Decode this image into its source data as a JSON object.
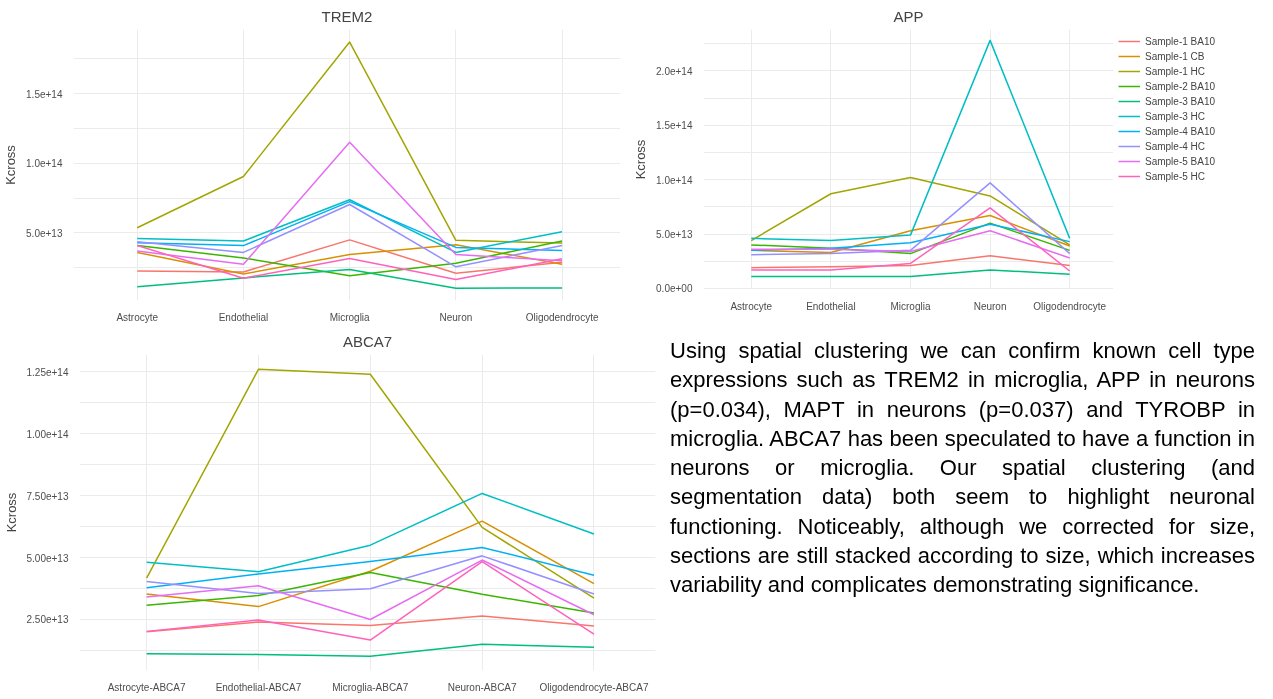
{
  "chart_data": [
    {
      "type": "line",
      "title": "TREM2",
      "ylabel": "Kcross",
      "grid": true,
      "legend": false,
      "categories": [
        "Astrocyte",
        "Endothelial",
        "Microglia",
        "Neuron",
        "Oligodendrocyte"
      ],
      "ylim": [
        1500000000000.0,
        196000000000000.0
      ],
      "yticks": [
        {
          "value": 25000000000000.0,
          "label": null
        },
        {
          "value": 50000000000000.0,
          "label": "5.0e+13"
        },
        {
          "value": 75000000000000.0,
          "label": null
        },
        {
          "value": 100000000000000.0,
          "label": "1.0e+14"
        },
        {
          "value": 125000000000000.0,
          "label": null
        },
        {
          "value": 150000000000000.0,
          "label": "1.5e+14"
        },
        {
          "value": 175000000000000.0,
          "label": null
        }
      ],
      "series": [
        {
          "color": "#f8766d",
          "values": [
            22600000000000.0,
            22000000000000.0,
            45000000000000.0,
            21000000000000.0,
            29000000000000.0
          ]
        },
        {
          "color": "#d89000",
          "values": [
            36000000000000.0,
            20500000000000.0,
            34500000000000.0,
            41500000000000.0,
            27500000000000.0
          ]
        },
        {
          "color": "#a3a500",
          "values": [
            53700000000000.0,
            90500000000000.0,
            187000000000000.0,
            44700000000000.0,
            42700000000000.0
          ]
        },
        {
          "color": "#39b600",
          "values": [
            41000000000000.0,
            32000000000000.0,
            19300000000000.0,
            28300000000000.0,
            44200000000000.0
          ]
        },
        {
          "color": "#00bf7d",
          "values": [
            11300000000000.0,
            17700000000000.0,
            23700000000000.0,
            10300000000000.0,
            10500000000000.0
          ]
        },
        {
          "color": "#00bfc4",
          "values": [
            46000000000000.0,
            44200000000000.0,
            73800000000000.0,
            36000000000000.0,
            50900000000000.0
          ]
        },
        {
          "color": "#00b0f6",
          "values": [
            43000000000000.0,
            40900000000000.0,
            72500000000000.0,
            39600000000000.0,
            37300000000000.0
          ]
        },
        {
          "color": "#9590ff",
          "values": [
            43700000000000.0,
            36000000000000.0,
            70400000000000.0,
            25700000000000.0,
            41000000000000.0
          ]
        },
        {
          "color": "#e76bf3",
          "values": [
            37000000000000.0,
            27500000000000.0,
            115000000000000.0,
            34500000000000.0,
            30000000000000.0
          ]
        },
        {
          "color": "#ff62bc",
          "values": [
            41000000000000.0,
            17500000000000.0,
            31600000000000.0,
            16500000000000.0,
            31400000000000.0
          ]
        }
      ]
    },
    {
      "type": "line",
      "title": "APP",
      "ylabel": "Kcross",
      "grid": true,
      "legend": "right",
      "categories": [
        "Astrocyte",
        "Endothelial",
        "Microglia",
        "Neuron",
        "Oligodendrocyte"
      ],
      "ylim": [
        -1000000000000.0,
        238000000000000.0
      ],
      "yticks": [
        {
          "value": 0,
          "label": "0.0e+00"
        },
        {
          "value": 25000000000000.0,
          "label": null
        },
        {
          "value": 50000000000000.0,
          "label": "5.0e+13"
        },
        {
          "value": 75000000000000.0,
          "label": null
        },
        {
          "value": 100000000000000.0,
          "label": "1.0e+14"
        },
        {
          "value": 125000000000000.0,
          "label": null
        },
        {
          "value": 150000000000000.0,
          "label": "1.5e+14"
        },
        {
          "value": 175000000000000.0,
          "label": null
        },
        {
          "value": 200000000000000.0,
          "label": "2.0e+14"
        },
        {
          "value": 225000000000000.0,
          "label": null
        }
      ],
      "series": [
        {
          "name": "Sample-1 BA10",
          "color": "#f8766d",
          "values": [
            19000000000000.0,
            20000000000000.0,
            21000000000000.0,
            30000000000000.0,
            21000000000000.0
          ]
        },
        {
          "name": "Sample-1 CB",
          "color": "#d89000",
          "values": [
            35000000000000.0,
            33000000000000.0,
            53000000000000.0,
            67000000000000.0,
            39000000000000.0
          ]
        },
        {
          "name": "Sample-1 HC",
          "color": "#a3a500",
          "values": [
            44000000000000.0,
            87000000000000.0,
            102000000000000.0,
            85000000000000.0,
            40000000000000.0
          ]
        },
        {
          "name": "Sample-2 BA10",
          "color": "#39b600",
          "values": [
            40000000000000.0,
            37000000000000.0,
            32000000000000.0,
            60000000000000.0,
            35000000000000.0
          ]
        },
        {
          "name": "Sample-3 BA10",
          "color": "#00bf7d",
          "values": [
            11000000000000.0,
            11000000000000.0,
            11000000000000.0,
            17000000000000.0,
            13000000000000.0
          ]
        },
        {
          "name": "Sample-3 HC",
          "color": "#00bfc4",
          "values": [
            46000000000000.0,
            44000000000000.0,
            49000000000000.0,
            228000000000000.0,
            46000000000000.0
          ]
        },
        {
          "name": "Sample-4 BA10",
          "color": "#00b0f6",
          "values": [
            35000000000000.0,
            37000000000000.0,
            42000000000000.0,
            59000000000000.0,
            43000000000000.0
          ]
        },
        {
          "name": "Sample-4 HC",
          "color": "#9590ff",
          "values": [
            31000000000000.0,
            32000000000000.0,
            35000000000000.0,
            97000000000000.0,
            32000000000000.0
          ]
        },
        {
          "name": "Sample-5 BA10",
          "color": "#e76bf3",
          "values": [
            36000000000000.0,
            36000000000000.0,
            34000000000000.0,
            53000000000000.0,
            28000000000000.0
          ]
        },
        {
          "name": "Sample-5 HC",
          "color": "#ff62bc",
          "values": [
            17000000000000.0,
            17000000000000.0,
            23000000000000.0,
            74000000000000.0,
            16000000000000.0
          ]
        }
      ]
    },
    {
      "type": "line",
      "title": "ABCA7",
      "ylabel": "Kcross",
      "grid": true,
      "legend": false,
      "categories": [
        "Astrocyte-ABCA7",
        "Endothelial-ABCA7",
        "Microglia-ABCA7",
        "Neuron-ABCA7",
        "Oligodendrocyte-ABCA7"
      ],
      "ylim": [
        4400000000000.0,
        132000000000000.0
      ],
      "yticks": [
        {
          "value": 12500000000000.0,
          "label": null
        },
        {
          "value": 25000000000000.0,
          "label": "2.50e+13"
        },
        {
          "value": 37500000000000.0,
          "label": null
        },
        {
          "value": 50000000000000.0,
          "label": "5.00e+13"
        },
        {
          "value": 62500000000000.0,
          "label": null
        },
        {
          "value": 75000000000000.0,
          "label": "7.50e+13"
        },
        {
          "value": 87500000000000.0,
          "label": null
        },
        {
          "value": 100000000000000.0,
          "label": "1.00e+14"
        },
        {
          "value": 112500000000000.0,
          "label": null
        },
        {
          "value": 125000000000000.0,
          "label": "1.25e+14"
        }
      ],
      "series": [
        {
          "color": "#f8766d",
          "values": [
            20000000000000.0,
            24000000000000.0,
            22600000000000.0,
            26400000000000.0,
            22400000000000.0
          ]
        },
        {
          "color": "#d89000",
          "values": [
            35300000000000.0,
            30200000000000.0,
            44500000000000.0,
            64700000000000.0,
            39500000000000.0
          ]
        },
        {
          "color": "#a3a500",
          "values": [
            41700000000000.0,
            126000000000000.0,
            124000000000000.0,
            62200000000000.0,
            33600000000000.0
          ]
        },
        {
          "color": "#39b600",
          "values": [
            30700000000000.0,
            34700000000000.0,
            44000000000000.0,
            35200000000000.0,
            27600000000000.0
          ]
        },
        {
          "color": "#00bf7d",
          "values": [
            11200000000000.0,
            10900000000000.0,
            10200000000000.0,
            15000000000000.0,
            13800000000000.0
          ]
        },
        {
          "color": "#00bfc4",
          "values": [
            48100000000000.0,
            44300000000000.0,
            55000000000000.0,
            75900000000000.0,
            59500000000000.0
          ]
        },
        {
          "color": "#00b0f6",
          "values": [
            37800000000000.0,
            43400000000000.0,
            48400000000000.0,
            54100000000000.0,
            42900000000000.0
          ]
        },
        {
          "color": "#9590ff",
          "values": [
            40300000000000.0,
            35500000000000.0,
            37400000000000.0,
            50700000000000.0,
            35300000000000.0
          ]
        },
        {
          "color": "#e76bf3",
          "values": [
            34100000000000.0,
            38600000000000.0,
            25000000000000.0,
            49000000000000.0,
            26900000000000.0
          ]
        },
        {
          "color": "#ff62bc",
          "values": [
            20200000000000.0,
            24800000000000.0,
            16700000000000.0,
            48400000000000.0,
            19100000000000.0
          ]
        }
      ]
    },
    {
      "type": "other",
      "annotations": [
        "Using spatial clustering we can confirm known cell type expressions such as TREM2 in microglia, APP in neurons (p=0.034), MAPT in neurons (p=0.037) and TYROBP in microglia. ABCA7 has been speculated to have a function in neurons or microglia. Our spatial clustering (and segmentation data) both seem to highlight neuronal functioning. Noticeably, although we corrected for size, sections are still stacked according to size, which increases variability and complicates demonstrating significance."
      ]
    }
  ]
}
